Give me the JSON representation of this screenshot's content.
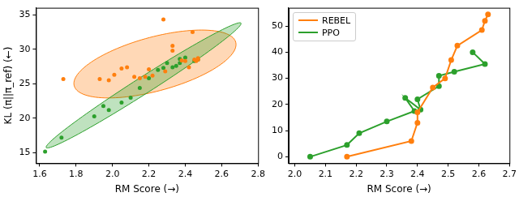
{
  "chart_data": [
    {
      "type": "scatter",
      "x_label": "RM Score (→)",
      "y_label": "KL (π||π_ref) (←)",
      "xlim": [
        1.58,
        2.8
      ],
      "xticks": [
        1.6,
        1.8,
        {
          "value": 2,
          "label": "2.0"
        },
        2.2,
        2.4,
        2.6,
        2.8
      ],
      "ylim": [
        13.5,
        36
      ],
      "yticks": [
        15,
        20,
        25,
        30,
        35
      ],
      "grid": false,
      "series": [
        {
          "color": "#ff7f0e",
          "marker": "o",
          "x": [
            1.73,
            1.93,
            1.98,
            2.01,
            2.05,
            2.08,
            2.12,
            2.15,
            2.18,
            2.2,
            2.22,
            2.28,
            2.33,
            2.33,
            2.38,
            2.4,
            2.42,
            2.44,
            2.45,
            2.46,
            2.47,
            2.47,
            2.29
          ],
          "values": [
            25.7,
            25.7,
            25.5,
            26.3,
            27.2,
            27.4,
            26.0,
            25.8,
            26.0,
            27.1,
            26.2,
            34.3,
            30.5,
            29.8,
            28.4,
            28.3,
            27.4,
            32.5,
            28.5,
            28.3,
            28.7,
            28.5,
            26.8
          ]
        },
        {
          "color": "#2ca02c",
          "marker": "o",
          "x": [
            1.63,
            1.72,
            1.9,
            1.95,
            1.98,
            2.05,
            2.1,
            2.15,
            2.2,
            2.25,
            2.28,
            2.3,
            2.33,
            2.35,
            2.37,
            2.4,
            2.37,
            2.45,
            2.47
          ],
          "values": [
            15.2,
            17.2,
            20.3,
            21.8,
            21.2,
            22.3,
            23.0,
            24.4,
            25.8,
            27.0,
            27.3,
            28.0,
            27.4,
            27.6,
            28.6,
            28.8,
            28.0,
            28.3,
            28.5
          ]
        }
      ]
    },
    {
      "type": "line",
      "x_label": "RM Score (→)",
      "xlim": [
        1.98,
        2.7
      ],
      "xticks": [
        {
          "value": 2,
          "label": "2.0"
        },
        2.1,
        2.2,
        2.3,
        2.4,
        2.5,
        2.6,
        2.7
      ],
      "ylim": [
        -2.5,
        57
      ],
      "yticks": [
        0,
        10,
        20,
        30,
        40,
        50
      ],
      "grid": false,
      "legend": "upper left",
      "series": [
        {
          "name": "REBEL",
          "color": "#ff7f0e",
          "marker": "o",
          "line_style": "solid",
          "x": [
            2.17,
            2.38,
            2.4,
            2.4,
            2.45,
            2.49,
            2.51,
            2.53,
            2.61,
            2.62,
            2.63
          ],
          "values": [
            0,
            6,
            13,
            17,
            26.5,
            30,
            37,
            42.5,
            48.5,
            52,
            54.5
          ]
        },
        {
          "name": "PPO",
          "color": "#2ca02c",
          "marker": "o",
          "line_style": "solid",
          "x": [
            2.05,
            2.17,
            2.21,
            2.3,
            2.39,
            2.36,
            2.41,
            2.4,
            2.47,
            2.47,
            2.52,
            2.62,
            2.58
          ],
          "values": [
            0,
            4.5,
            9,
            13.5,
            17.5,
            22.5,
            18,
            22,
            27,
            31,
            32.5,
            35.5,
            40
          ]
        }
      ]
    }
  ]
}
